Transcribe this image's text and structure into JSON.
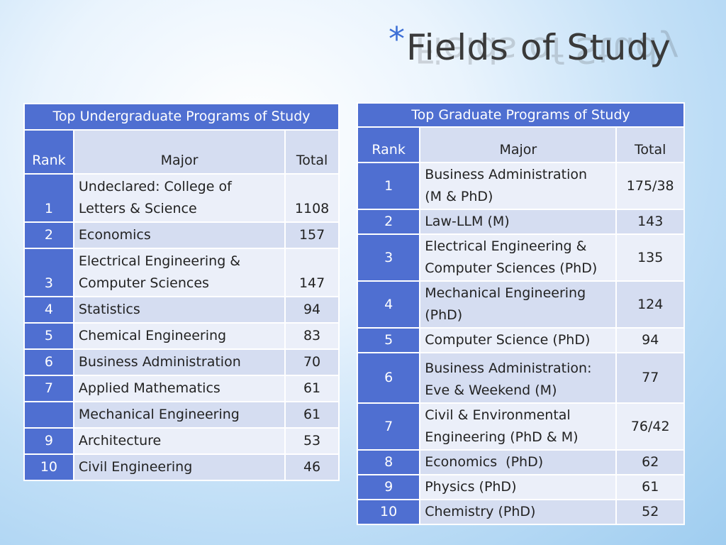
{
  "title": {
    "bullet": "*",
    "text": "Fields of Study"
  },
  "undergrad": {
    "header": "Top Undergraduate Programs of Study",
    "columns": {
      "rank": "Rank",
      "major": "Major",
      "total": "Total"
    },
    "rows": [
      {
        "rank": "1",
        "major_line1": "Undeclared: College of",
        "major_line2": "Letters & Science",
        "total": "1108"
      },
      {
        "rank": "2",
        "major": "Economics",
        "total": "157"
      },
      {
        "rank": "3",
        "major_line1": "Electrical Engineering &",
        "major_line2": "Computer Sciences",
        "total": "147"
      },
      {
        "rank": "4",
        "major": "Statistics",
        "total": "94"
      },
      {
        "rank": "5",
        "major": "Chemical Engineering",
        "total": "83"
      },
      {
        "rank": "6",
        "major": "Business Administration",
        "total": "70"
      },
      {
        "rank": "7",
        "major": "Applied Mathematics",
        "total": "61"
      },
      {
        "rank": "",
        "major": "Mechanical Engineering",
        "total": "61"
      },
      {
        "rank": "9",
        "major": "Architecture",
        "total": "53"
      },
      {
        "rank": "10",
        "major": "Civil Engineering",
        "total": "46"
      }
    ]
  },
  "grad": {
    "header": "Top Graduate Programs of Study",
    "columns": {
      "rank": "Rank",
      "major": "Major",
      "total": "Total"
    },
    "rows": [
      {
        "rank": "1",
        "major_line1": "Business Administration",
        "major_line2": "(M & PhD)",
        "total": "175/38"
      },
      {
        "rank": "2",
        "major": "Law-LLM (M)",
        "total": "143"
      },
      {
        "rank": "3",
        "major_line1": "Electrical Engineering &",
        "major_line2": "Computer Sciences (PhD)",
        "total": "135"
      },
      {
        "rank": "4",
        "major_line1": "Mechanical Engineering",
        "major_line2": "(PhD)",
        "total": "124"
      },
      {
        "rank": "5",
        "major": "Computer Science (PhD)",
        "total": "94"
      },
      {
        "rank": "6",
        "major_line1": "Business Administration:",
        "major_line2": "Eve & Weekend (M)",
        "total": "77"
      },
      {
        "rank": "7",
        "major_line1": "Civil & Environmental",
        "major_line2": "Engineering (PhD & M)",
        "total": "76/42"
      },
      {
        "rank": "8",
        "major": "Economics  (PhD)",
        "total": "62"
      },
      {
        "rank": "9",
        "major": "Physics (PhD)",
        "total": "61"
      },
      {
        "rank": "10",
        "major": "Chemistry (PhD)",
        "total": "52"
      }
    ]
  },
  "colors": {
    "header_blue": "#4f6fd1",
    "row_light": "#ebeff9",
    "row_mid": "#d5ddf1",
    "bullet_blue": "#3d6fd6"
  }
}
